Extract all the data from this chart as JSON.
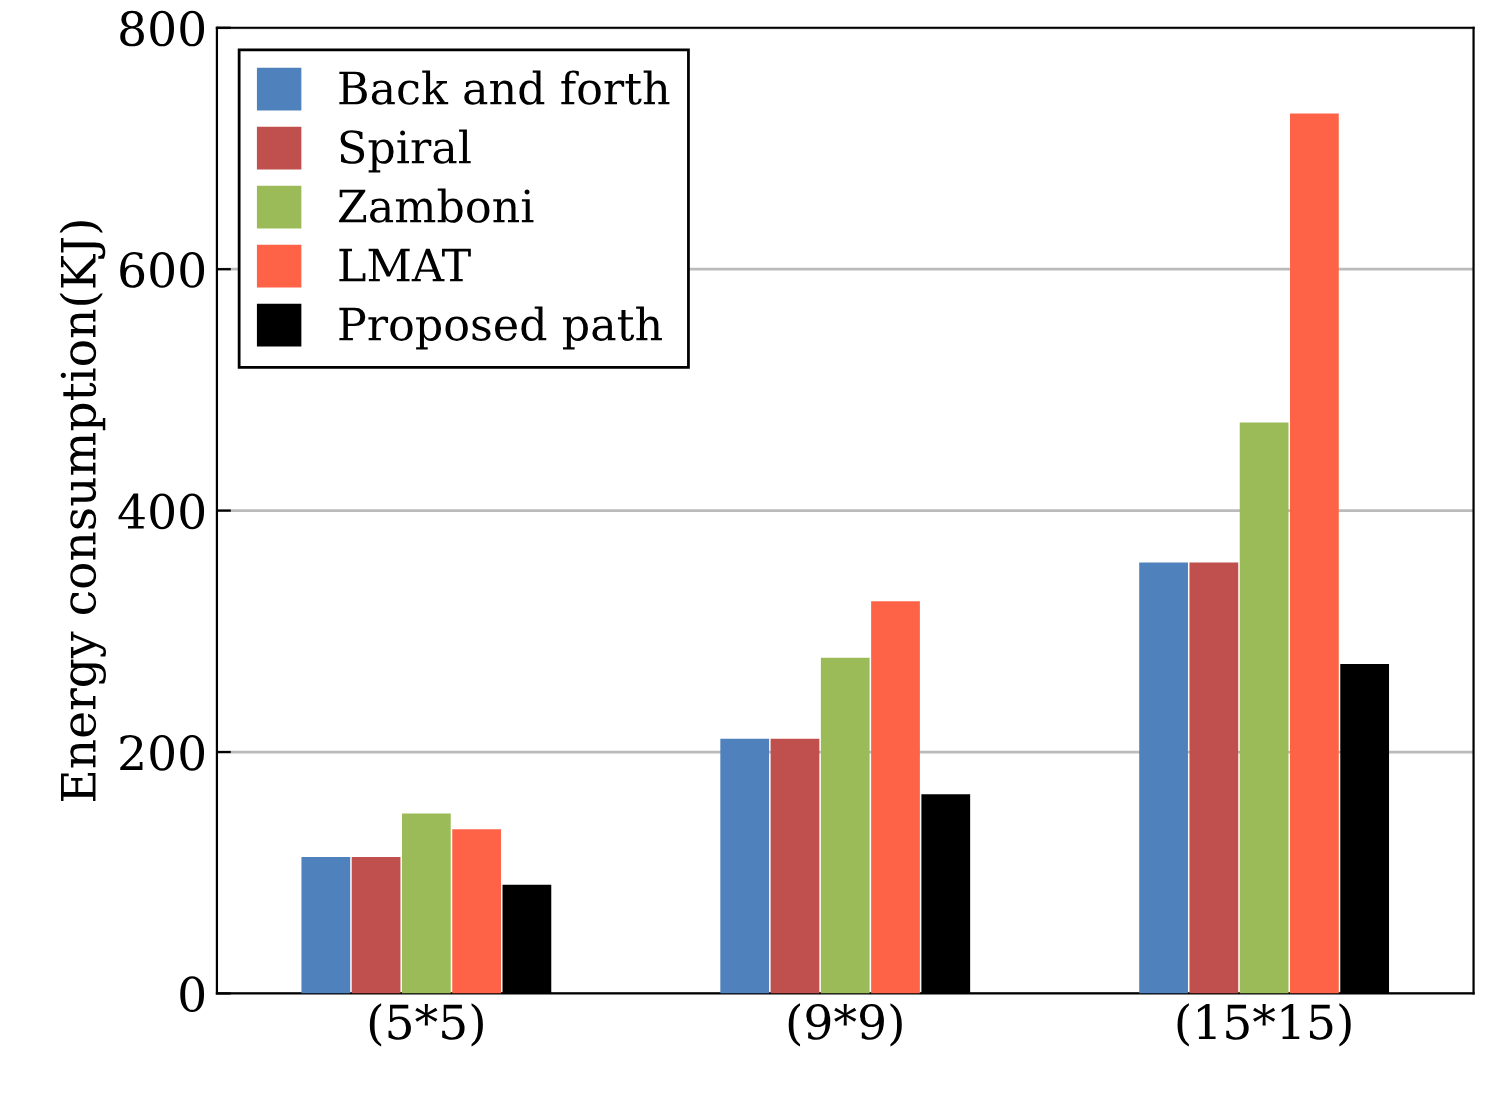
{
  "chart_data": {
    "type": "bar",
    "ylabel": "Energy consumption(KJ)",
    "categories": [
      "(5*5)",
      "(9*9)",
      "(15*15)"
    ],
    "series": [
      {
        "name": "Back and forth",
        "color": "#4f81bd",
        "values": [
          113,
          211,
          357
        ]
      },
      {
        "name": "Spiral",
        "color": "#c0504d",
        "values": [
          113,
          211,
          357
        ]
      },
      {
        "name": "Zamboni",
        "color": "#9bbb59",
        "values": [
          149,
          278,
          473
        ]
      },
      {
        "name": "LMAT",
        "color": "#ff6347",
        "values": [
          136,
          325,
          729
        ]
      },
      {
        "name": "Proposed path",
        "color": "#000000",
        "values": [
          90,
          165,
          273
        ]
      }
    ],
    "ylim": [
      0,
      800
    ],
    "yticks": [
      0,
      200,
      400,
      600,
      800
    ],
    "grid": "y",
    "legend": "top left"
  }
}
